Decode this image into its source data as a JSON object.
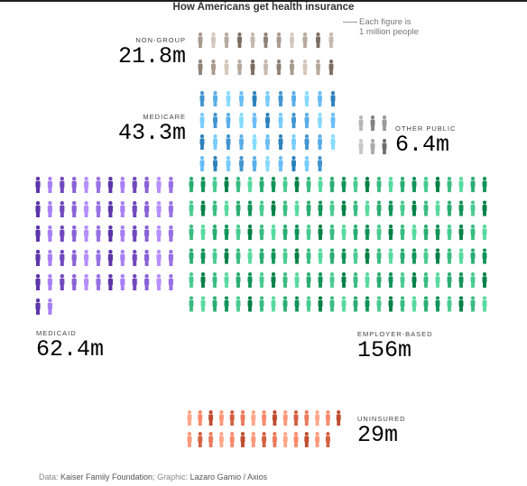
{
  "title": "How Americans get health insurance",
  "note": {
    "line1": "Each figure is",
    "line2": "1 million people"
  },
  "source": {
    "prefix": "Data: ",
    "org": "Kaiser Family Foundation",
    "mid": "; Graphic: ",
    "author": "Lazaro Gamio / Axios"
  },
  "chart_data": {
    "type": "pictograph",
    "unit": "1 million people",
    "categories": [
      {
        "name": "NON-GROUP",
        "value_label": "21.8m",
        "value": 21.8,
        "color": "#a89a8e"
      },
      {
        "name": "MEDICARE",
        "value_label": "43.3m",
        "value": 43.3,
        "color": "#5aaee8"
      },
      {
        "name": "OTHER PUBLIC",
        "value_label": "6.4m",
        "value": 6.4,
        "color": "#9a9a9a"
      },
      {
        "name": "MEDICAID",
        "value_label": "62.4m",
        "value": 62.4,
        "color": "#8a62d6"
      },
      {
        "name": "EMPLOYER-BASED",
        "value_label": "156m",
        "value": 156,
        "color": "#2aad72"
      },
      {
        "name": "UNINSURED",
        "value_label": "29m",
        "value": 29,
        "color": "#ec7a5c"
      }
    ]
  }
}
